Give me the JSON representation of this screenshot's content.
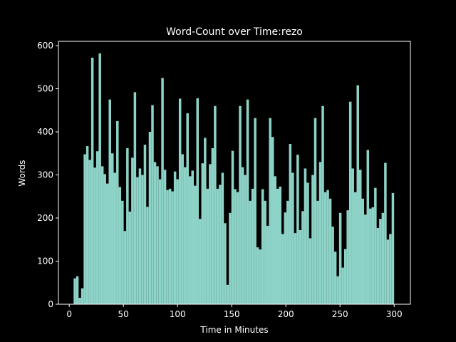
{
  "chart_data": {
    "type": "histogram",
    "title": "Word-Count over Time:rezo",
    "xlabel": "Time in Minutes",
    "ylabel": "Words",
    "color": "#8dd3c7",
    "bins": [
      4,
      6.3125,
      8.625,
      10.9375,
      13.25,
      15.5625,
      17.875,
      20.1875,
      22.5,
      24.8125,
      27.125,
      29.4375,
      31.75,
      34.0625,
      36.375,
      38.6875,
      41,
      43.3125,
      45.625,
      47.9375,
      50.25,
      52.5625,
      54.875,
      57.1875,
      59.5,
      61.8125,
      64.125,
      66.4375,
      68.75,
      71.0625,
      73.375,
      75.6875,
      78,
      80.3125,
      82.625,
      84.9375,
      87.25,
      89.5625,
      91.875,
      94.1875,
      96.5,
      98.8125,
      101.125,
      103.4375,
      105.75,
      108.0625,
      110.375,
      112.6875,
      115,
      117.3125,
      119.625,
      121.9375,
      124.25,
      126.5625,
      128.875,
      131.1875,
      133.5,
      135.8125,
      138.125,
      140.4375,
      142.75,
      145.0625,
      147.375,
      149.6875,
      152,
      154.3125,
      156.625,
      158.9375,
      161.25,
      163.5625,
      165.875,
      168.1875,
      170.5,
      172.8125,
      175.125,
      177.4375,
      179.75,
      182.0625,
      184.375,
      186.6875,
      189,
      191.3125,
      193.625,
      195.9375,
      198.25,
      200.5625,
      202.875,
      205.1875,
      207.5,
      209.8125,
      212.125,
      214.4375,
      216.75,
      219.0625,
      221.375,
      223.6875,
      226,
      228.3125,
      230.625,
      232.9375,
      235.25,
      237.5625,
      239.875,
      242.1875,
      244.5,
      246.8125,
      249.125,
      251.4375,
      253.75,
      256.0625,
      258.375,
      260.6875,
      263,
      265.3125,
      267.625,
      269.9375,
      272.25,
      274.5625,
      276.875,
      279.1875,
      281.5,
      283.8125,
      286.125,
      288.4375,
      290.75,
      293.0625,
      295.375,
      297.6875,
      300
    ],
    "values": [
      60,
      65,
      15,
      37,
      348,
      367,
      335,
      572,
      317,
      355,
      582,
      320,
      302,
      280,
      475,
      350,
      305,
      425,
      272,
      240,
      170,
      362,
      215,
      340,
      492,
      295,
      315,
      300,
      370,
      226,
      400,
      462,
      330,
      320,
      290,
      525,
      312,
      265,
      268,
      262,
      308,
      290,
      477,
      348,
      318,
      443,
      297,
      310,
      275,
      478,
      198,
      327,
      386,
      268,
      325,
      362,
      460,
      268,
      277,
      305,
      188,
      45,
      212,
      356,
      267,
      260,
      460,
      318,
      300,
      475,
      240,
      268,
      432,
      132,
      127,
      267,
      240,
      182,
      432,
      388,
      297,
      268,
      273,
      163,
      213,
      240,
      372,
      305,
      165,
      347,
      172,
      216,
      315,
      282,
      153,
      300,
      432,
      240,
      330,
      460,
      260,
      265,
      245,
      180,
      122,
      65,
      212,
      85,
      128,
      218,
      470,
      315,
      260,
      508,
      312,
      245,
      208,
      358,
      222,
      225,
      270,
      177,
      198,
      212,
      328,
      150,
      163,
      258
    ],
    "xlim": [
      -10,
      315
    ],
    "xticks": [
      0,
      50,
      100,
      150,
      200,
      250,
      300
    ],
    "ylim": [
      0,
      610
    ],
    "yticks": [
      0,
      100,
      200,
      300,
      400,
      500,
      600
    ]
  }
}
